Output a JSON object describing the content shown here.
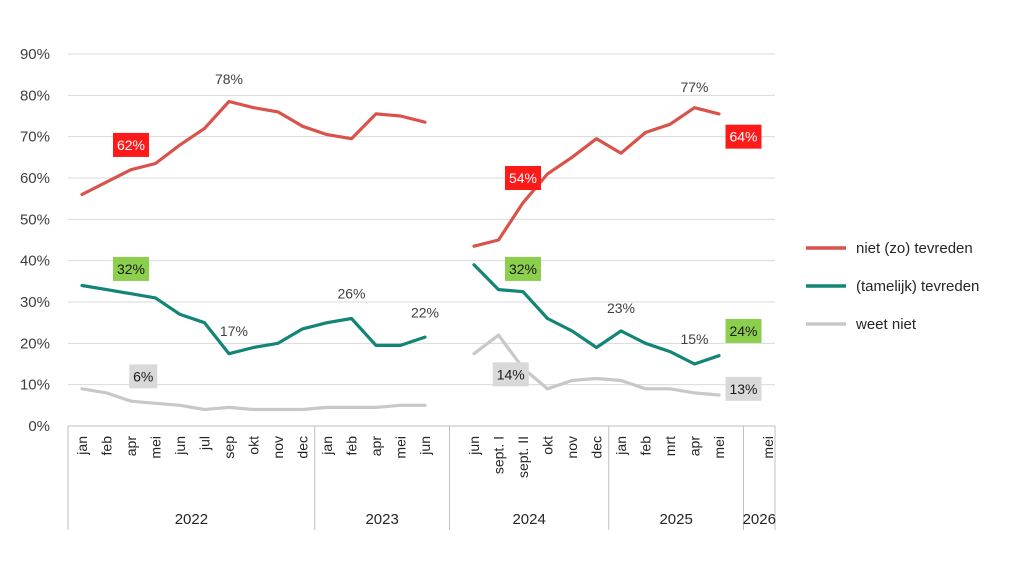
{
  "chart_data": {
    "type": "line",
    "ylim": [
      0,
      90
    ],
    "y_ticks": [
      "0%",
      "10%",
      "20%",
      "30%",
      "40%",
      "50%",
      "60%",
      "70%",
      "80%",
      "90%"
    ],
    "grid": true,
    "legend_position": "right",
    "periods": [
      {
        "year": "2022",
        "categories": [
          "jan",
          "feb",
          "apr",
          "mei",
          "jun",
          "jul",
          "sep",
          "okt",
          "nov",
          "dec"
        ]
      },
      {
        "year": "2023",
        "categories": [
          "jan",
          "feb",
          "apr",
          "mei",
          "jun"
        ]
      },
      {
        "year": "2024",
        "categories": [
          "jun",
          "sept. I",
          "sept. II",
          "okt",
          "nov",
          "dec"
        ]
      },
      {
        "year": "2025",
        "categories": [
          "jan",
          "feb",
          "mrt",
          "apr",
          "mei"
        ]
      },
      {
        "year": "2026",
        "categories": [
          "mei"
        ]
      }
    ],
    "segments": [
      {
        "from": 0,
        "to": 14
      },
      {
        "from": 16,
        "to": 26
      }
    ],
    "series": [
      {
        "name": "niet (zo) tevreden",
        "color": "#d9534a",
        "values": [
          56,
          59,
          62,
          63.5,
          68,
          72,
          78.5,
          77,
          76,
          72.5,
          70.5,
          69.5,
          75.5,
          75,
          73.5,
          null,
          43.5,
          45,
          54,
          61,
          65,
          69.5,
          66,
          71,
          73,
          77,
          75.5,
          null
        ]
      },
      {
        "name": "(tamelijk) tevreden",
        "color": "#138577",
        "values": [
          34,
          33,
          32,
          31,
          27,
          25,
          17.5,
          19,
          20,
          23.5,
          25,
          26,
          19.5,
          19.5,
          21.5,
          null,
          39,
          33,
          32.5,
          26,
          23,
          19,
          23,
          20,
          18,
          15,
          17,
          null
        ]
      },
      {
        "name": "weet niet",
        "color": "#c8c8c8",
        "values": [
          9,
          8,
          6,
          5.5,
          5,
          4,
          4.5,
          4,
          4,
          4,
          4.5,
          4.5,
          4.5,
          5,
          5,
          null,
          17.5,
          22,
          14,
          9,
          11,
          11.5,
          11,
          9,
          9,
          8,
          7.5,
          null
        ]
      }
    ],
    "data_labels": [
      {
        "text": "62%",
        "x": 2,
        "y": 68,
        "series": 0,
        "style": "box-red"
      },
      {
        "text": "78%",
        "x": 6,
        "y": 84,
        "series": 0,
        "style": "plain"
      },
      {
        "text": "54%",
        "x": 18,
        "y": 60,
        "series": 0,
        "style": "box-red"
      },
      {
        "text": "77%",
        "x": 25,
        "y": 82,
        "series": 0,
        "style": "plain"
      },
      {
        "text": "64%",
        "x": 27,
        "y": 70,
        "series": 0,
        "style": "box-red"
      },
      {
        "text": "32%",
        "x": 2,
        "y": 38,
        "series": 1,
        "style": "box-green"
      },
      {
        "text": "17%",
        "x": 6.2,
        "y": 23,
        "series": 1,
        "style": "plain"
      },
      {
        "text": "26%",
        "x": 11,
        "y": 32,
        "series": 1,
        "style": "plain"
      },
      {
        "text": "22%",
        "x": 14,
        "y": 27.5,
        "series": 1,
        "style": "plain"
      },
      {
        "text": "32%",
        "x": 18,
        "y": 38,
        "series": 1,
        "style": "box-green"
      },
      {
        "text": "23%",
        "x": 22,
        "y": 28.5,
        "series": 1,
        "style": "plain"
      },
      {
        "text": "15%",
        "x": 25,
        "y": 21,
        "series": 1,
        "style": "plain"
      },
      {
        "text": "24%",
        "x": 27,
        "y": 23,
        "series": 1,
        "style": "box-green"
      },
      {
        "text": "6%",
        "x": 2.5,
        "y": 12,
        "series": 2,
        "style": "box-gray"
      },
      {
        "text": "14%",
        "x": 17.5,
        "y": 12.5,
        "series": 2,
        "style": "box-gray"
      },
      {
        "text": "13%",
        "x": 27,
        "y": 9,
        "series": 2,
        "style": "box-gray"
      }
    ],
    "label_styles": {
      "box-red": {
        "bg": "#ff1a1a",
        "fg": "#ffffff"
      },
      "box-green": {
        "bg": "#8ccf4d",
        "fg": "#1a1a1a"
      },
      "box-gray": {
        "bg": "#d9d9d9",
        "fg": "#1a1a1a"
      },
      "plain": {
        "bg": "",
        "fg": "#404040"
      }
    }
  }
}
